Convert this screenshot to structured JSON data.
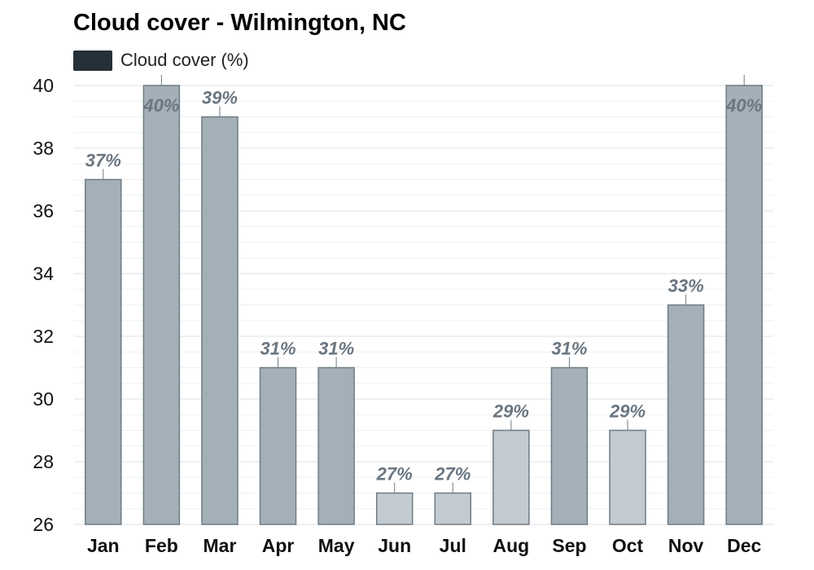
{
  "chart_data": {
    "type": "bar",
    "title": "Cloud cover - Wilmington, NC",
    "legend": [
      "Cloud cover (%)"
    ],
    "legend_position": "top-left",
    "categories": [
      "Jan",
      "Feb",
      "Mar",
      "Apr",
      "May",
      "Jun",
      "Jul",
      "Aug",
      "Sep",
      "Oct",
      "Nov",
      "Dec"
    ],
    "series": [
      {
        "name": "Cloud cover (%)",
        "values": [
          37,
          40,
          39,
          31,
          31,
          27,
          27,
          29,
          31,
          29,
          33,
          40
        ]
      }
    ],
    "data_labels": [
      "37%",
      "40%",
      "39%",
      "31%",
      "31%",
      "27%",
      "27%",
      "29%",
      "31%",
      "29%",
      "33%",
      "40%"
    ],
    "yticks": [
      26,
      28,
      30,
      32,
      34,
      36,
      38,
      40
    ],
    "ylim": [
      26,
      40
    ],
    "xlabel": "",
    "ylabel": "",
    "grid": true,
    "colors": {
      "legend_swatch": "#263038",
      "bar_dark": "#a4b0b8",
      "bar_light": "#c3cbd1",
      "bar_stroke": "#6f7b84",
      "data_label": "#6a7681",
      "gridline": "#dde1e4",
      "minor_gridline": "#eef0f2",
      "tick_label": "#111111"
    }
  }
}
